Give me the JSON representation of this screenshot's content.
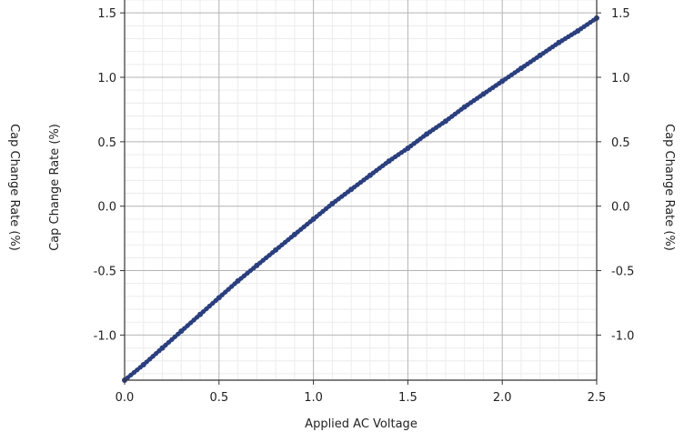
{
  "chart_data": {
    "type": "scatter",
    "xlabel": "Applied AC Voltage",
    "ylabel": "Cap Change Rate (%)",
    "ylabel_outer_left": "Cap Change Rate (%)",
    "ylabel_right": "Cap Change Rate (%)",
    "xlim": [
      0.0,
      2.5
    ],
    "ylim": [
      -1.35,
      1.6
    ],
    "x_ticks": [
      0.0,
      0.5,
      1.0,
      1.5,
      2.0,
      2.5
    ],
    "x_tick_labels": [
      "0.0",
      "0.5",
      "1.0",
      "1.5",
      "2.0",
      "2.5"
    ],
    "y_ticks": [
      -1.0,
      -0.5,
      0.0,
      0.5,
      1.0,
      1.5
    ],
    "y_tick_labels": [
      "-1.0",
      "-0.5",
      "0.0",
      "0.5",
      "1.0",
      "1.5"
    ],
    "grid": true,
    "minor_grid": true,
    "series": [
      {
        "color": "#2b3f7e",
        "x": [
          0.0,
          0.1,
          0.2,
          0.3,
          0.4,
          0.5,
          0.6,
          0.7,
          0.8,
          0.9,
          1.0,
          1.1,
          1.2,
          1.3,
          1.4,
          1.5,
          1.6,
          1.7,
          1.8,
          1.9,
          2.0,
          2.1,
          2.2,
          2.3,
          2.4,
          2.5
        ],
        "y": [
          -1.35,
          -1.23,
          -1.1,
          -0.97,
          -0.84,
          -0.71,
          -0.58,
          -0.46,
          -0.34,
          -0.22,
          -0.1,
          0.02,
          0.13,
          0.24,
          0.35,
          0.45,
          0.56,
          0.66,
          0.77,
          0.87,
          0.97,
          1.07,
          1.17,
          1.27,
          1.36,
          1.46
        ]
      }
    ]
  }
}
